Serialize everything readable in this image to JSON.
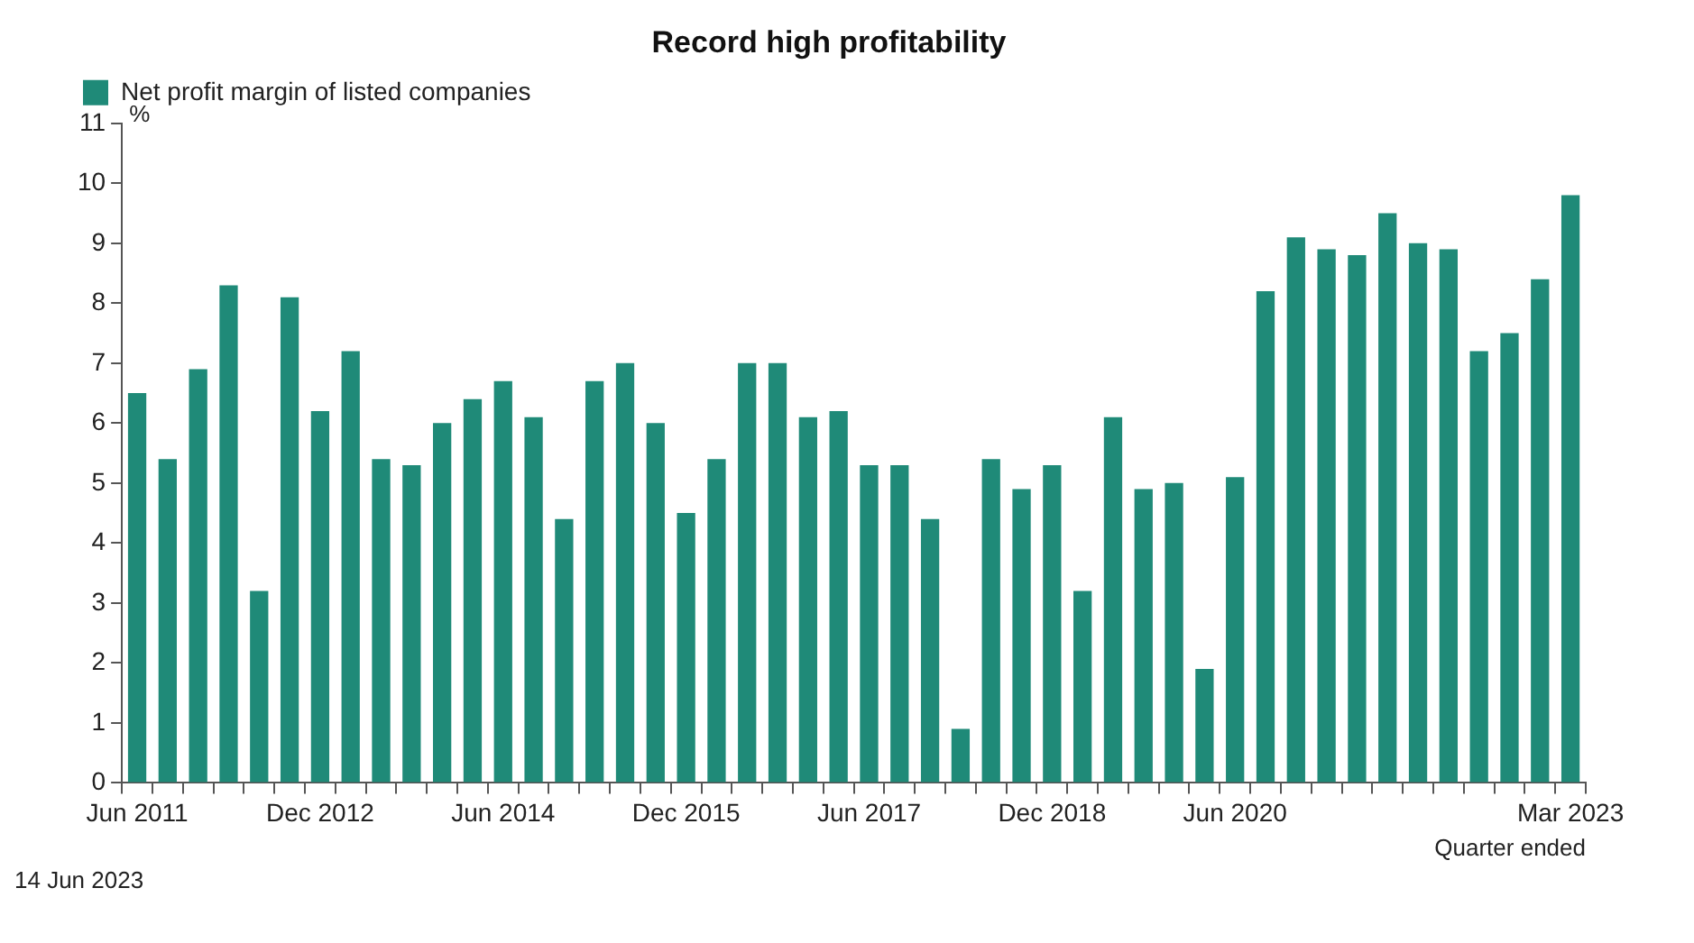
{
  "chart_data": {
    "type": "bar",
    "title": "Record high profitability",
    "ylabel": "%",
    "xlabel": "Quarter ended",
    "annotations": [
      "14 Jun 2023"
    ],
    "categories": [
      "Jun 2011",
      null,
      null,
      null,
      null,
      null,
      "Dec 2012",
      null,
      null,
      null,
      null,
      null,
      "Jun 2014",
      null,
      null,
      null,
      null,
      null,
      "Dec 2015",
      null,
      null,
      null,
      null,
      null,
      "Jun 2017",
      null,
      null,
      null,
      null,
      null,
      "Dec 2018",
      null,
      null,
      null,
      null,
      null,
      "Jun 2020",
      null,
      null,
      null,
      null,
      null,
      null,
      null,
      null,
      null,
      null,
      "Mar 2023"
    ],
    "series": [
      {
        "name": "Net profit margin of listed companies",
        "color": "#1f8a78",
        "values": [
          6.5,
          5.4,
          6.9,
          8.3,
          3.2,
          8.1,
          6.2,
          7.2,
          5.4,
          5.3,
          6.0,
          6.4,
          6.7,
          6.1,
          4.4,
          6.7,
          7.0,
          6.0,
          4.5,
          5.4,
          7.0,
          7.0,
          6.1,
          6.2,
          5.3,
          5.3,
          4.4,
          0.9,
          5.4,
          4.9,
          5.3,
          3.2,
          6.1,
          4.9,
          5.0,
          1.9,
          5.1,
          8.2,
          9.1,
          8.9,
          8.8,
          9.5,
          9.0,
          8.9,
          7.2,
          7.5,
          8.4,
          9.8
        ]
      }
    ],
    "ylim": [
      0,
      11
    ],
    "yticks": [
      0,
      1,
      2,
      3,
      4,
      5,
      6,
      7,
      8,
      9,
      10,
      11
    ],
    "grid": false,
    "legend": "top left"
  }
}
